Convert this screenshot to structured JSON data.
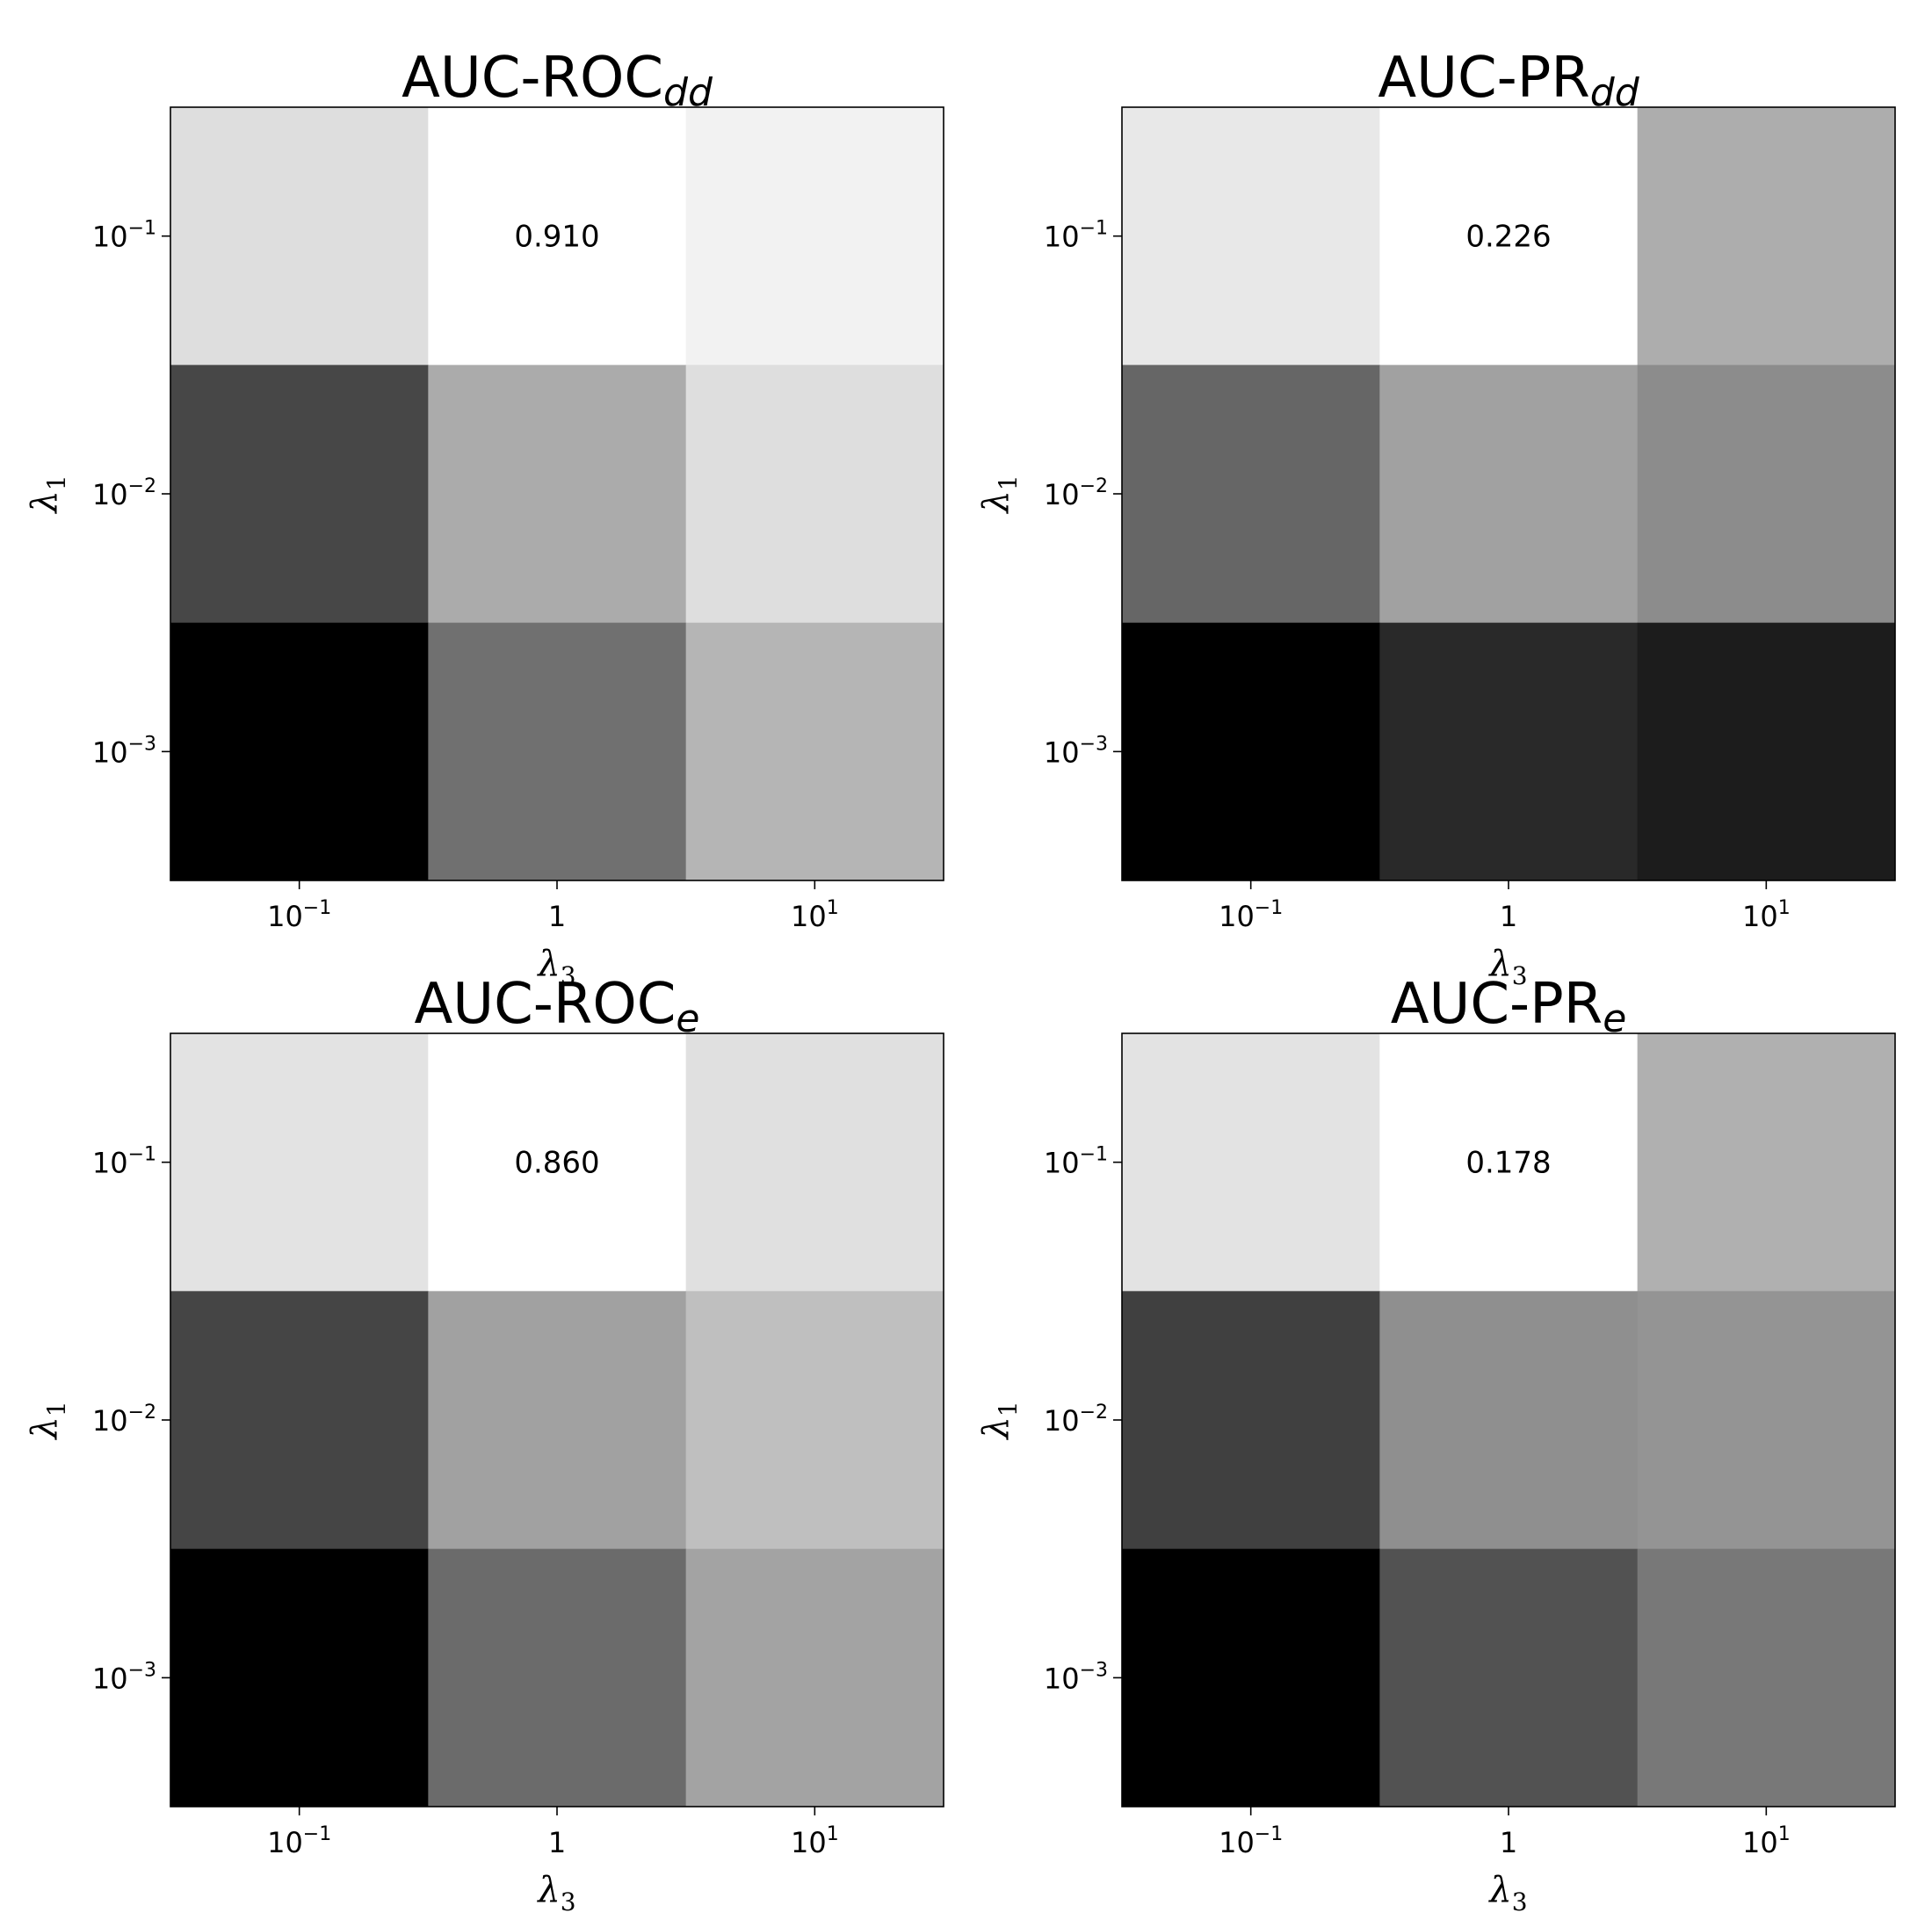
{
  "chart_data": [
    {
      "type": "heatmap",
      "title": "AUC-ROC",
      "title_subscript": "dd",
      "xlabel": "λ",
      "xlabel_subscript": "3",
      "ylabel": "λ",
      "ylabel_subscript": "1",
      "x_ticks": [
        {
          "base": "10",
          "exp": "−1"
        },
        {
          "base": "1",
          "exp": ""
        },
        {
          "base": "10",
          "exp": "1"
        }
      ],
      "y_ticks": [
        {
          "base": "10",
          "exp": "−1"
        },
        {
          "base": "10",
          "exp": "−2"
        },
        {
          "base": "10",
          "exp": "−3"
        }
      ],
      "colormap": "gray",
      "relative_intensity": [
        [
          0.87,
          1.0,
          0.95
        ],
        [
          0.28,
          0.67,
          0.87
        ],
        [
          0.0,
          0.44,
          0.71
        ]
      ],
      "annotations": [
        {
          "row": 0,
          "col": 1,
          "text": "0.910"
        }
      ]
    },
    {
      "type": "heatmap",
      "title": "AUC-PR",
      "title_subscript": "dd",
      "xlabel": "λ",
      "xlabel_subscript": "3",
      "ylabel": "λ",
      "ylabel_subscript": "1",
      "x_ticks": [
        {
          "base": "10",
          "exp": "−1"
        },
        {
          "base": "1",
          "exp": ""
        },
        {
          "base": "10",
          "exp": "1"
        }
      ],
      "y_ticks": [
        {
          "base": "10",
          "exp": "−1"
        },
        {
          "base": "10",
          "exp": "−2"
        },
        {
          "base": "10",
          "exp": "−3"
        }
      ],
      "colormap": "gray",
      "relative_intensity": [
        [
          0.91,
          1.0,
          0.68
        ],
        [
          0.4,
          0.63,
          0.55
        ],
        [
          0.0,
          0.16,
          0.11
        ]
      ],
      "annotations": [
        {
          "row": 0,
          "col": 1,
          "text": "0.226"
        }
      ]
    },
    {
      "type": "heatmap",
      "title": "AUC-ROC",
      "title_subscript": "e",
      "xlabel": "λ",
      "xlabel_subscript": "3",
      "ylabel": "λ",
      "ylabel_subscript": "1",
      "x_ticks": [
        {
          "base": "10",
          "exp": "−1"
        },
        {
          "base": "1",
          "exp": ""
        },
        {
          "base": "10",
          "exp": "1"
        }
      ],
      "y_ticks": [
        {
          "base": "10",
          "exp": "−1"
        },
        {
          "base": "10",
          "exp": "−2"
        },
        {
          "base": "10",
          "exp": "−3"
        }
      ],
      "colormap": "gray",
      "relative_intensity": [
        [
          0.89,
          1.0,
          0.88
        ],
        [
          0.27,
          0.63,
          0.75
        ],
        [
          0.0,
          0.42,
          0.64
        ]
      ],
      "annotations": [
        {
          "row": 0,
          "col": 1,
          "text": "0.860"
        }
      ]
    },
    {
      "type": "heatmap",
      "title": "AUC-PR",
      "title_subscript": "e",
      "xlabel": "λ",
      "xlabel_subscript": "3",
      "ylabel": "λ",
      "ylabel_subscript": "1",
      "x_ticks": [
        {
          "base": "10",
          "exp": "−1"
        },
        {
          "base": "1",
          "exp": ""
        },
        {
          "base": "10",
          "exp": "1"
        }
      ],
      "y_ticks": [
        {
          "base": "10",
          "exp": "−1"
        },
        {
          "base": "10",
          "exp": "−2"
        },
        {
          "base": "10",
          "exp": "−3"
        }
      ],
      "colormap": "gray",
      "relative_intensity": [
        [
          0.89,
          1.0,
          0.69
        ],
        [
          0.25,
          0.56,
          0.58
        ],
        [
          0.0,
          0.32,
          0.47
        ]
      ],
      "annotations": [
        {
          "row": 0,
          "col": 1,
          "text": "0.178"
        }
      ]
    }
  ]
}
